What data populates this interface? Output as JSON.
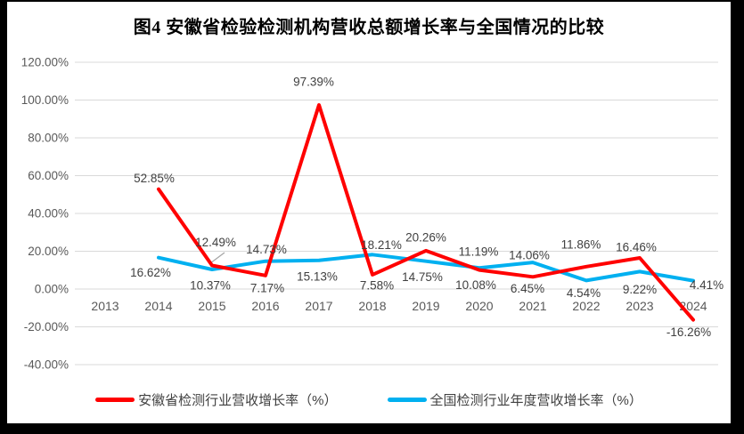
{
  "frame": {
    "border_color": "#000000",
    "background": "#FFFFFF"
  },
  "chart_data": {
    "type": "line",
    "title": "图4  安徽省检验检测机构营收总额增长率与全国情况的比较",
    "categories": [
      "2013",
      "2014",
      "2015",
      "2016",
      "2017",
      "2018",
      "2019",
      "2020",
      "2021",
      "2022",
      "2023",
      "2024"
    ],
    "series": [
      {
        "name": "安徽省检测行业营收增长率（%）",
        "color": "#FF0000",
        "values": [
          null,
          52.85,
          12.49,
          7.17,
          97.39,
          7.58,
          20.26,
          10.08,
          6.45,
          11.86,
          16.46,
          -16.26
        ]
      },
      {
        "name": "全国检测行业年度营收增长率（%）",
        "color": "#00B0F0",
        "values": [
          null,
          16.62,
          10.37,
          14.73,
          15.13,
          18.21,
          14.75,
          11.19,
          14.06,
          4.54,
          9.22,
          4.41
        ]
      }
    ],
    "y_ticks": [
      120,
      100,
      80,
      60,
      40,
      20,
      0,
      -20,
      -40
    ],
    "ylim": [
      -40,
      120
    ],
    "y_tick_format": "0.00%",
    "data_label_format": "0.00%",
    "grid": true,
    "legend_position": "bottom",
    "colors": {
      "gridline": "#D9D9D9",
      "axis_label": "#595959",
      "data_label": "#404040",
      "leader_line": "#A6A6A6"
    }
  }
}
